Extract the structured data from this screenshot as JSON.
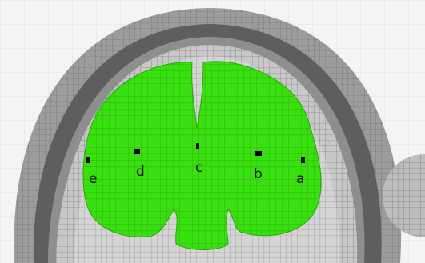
{
  "labels": [
    "e",
    "d",
    "c",
    "b",
    "a"
  ]
}
